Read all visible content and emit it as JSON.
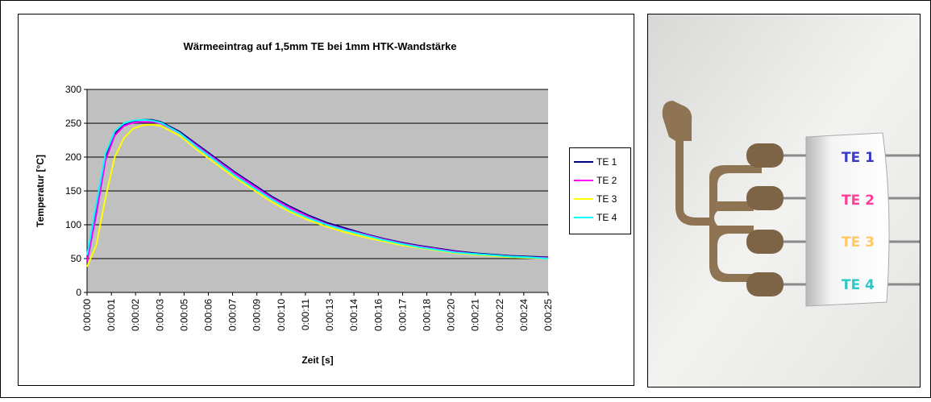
{
  "chart_data": {
    "type": "line",
    "title": "Wärmeeintrag auf 1,5mm TE bei 1mm HTK-Wandstärke",
    "x_label": "Zeit [s]",
    "y_label": "Temperatur [°C]",
    "x": [
      0,
      0.5,
      1,
      1.5,
      2,
      2.5,
      3,
      3.5,
      4,
      5,
      6,
      7,
      8,
      9,
      10,
      11,
      12,
      13,
      14,
      15,
      16,
      17,
      18,
      19,
      20,
      21,
      22,
      23,
      24,
      25
    ],
    "series": [
      {
        "name": "TE 1",
        "color": "#000080",
        "values": [
          45,
          120,
          200,
          235,
          248,
          253,
          255,
          255,
          252,
          238,
          218,
          198,
          178,
          160,
          142,
          127,
          114,
          103,
          95,
          87,
          80,
          74,
          69,
          65,
          61,
          58,
          56,
          54,
          53,
          52
        ]
      },
      {
        "name": "TE 2",
        "color": "#ff00ff",
        "values": [
          45,
          115,
          195,
          232,
          246,
          251,
          252,
          252,
          250,
          236,
          216,
          196,
          176,
          158,
          140,
          125,
          112,
          101,
          93,
          86,
          79,
          73,
          68,
          64,
          60,
          57,
          55,
          53,
          52,
          51
        ]
      },
      {
        "name": "TE 3",
        "color": "#ffff00",
        "values": [
          38,
          70,
          140,
          200,
          228,
          242,
          247,
          248,
          246,
          232,
          210,
          190,
          170,
          152,
          134,
          119,
          107,
          97,
          89,
          82,
          76,
          70,
          66,
          62,
          58,
          56,
          54,
          52,
          51,
          50
        ]
      },
      {
        "name": "TE 4",
        "color": "#00ffff",
        "values": [
          55,
          130,
          205,
          238,
          250,
          254,
          255,
          254,
          251,
          236,
          214,
          194,
          173,
          155,
          138,
          122,
          110,
          100,
          92,
          85,
          78,
          72,
          67,
          63,
          59,
          57,
          55,
          53,
          52,
          50
        ]
      }
    ],
    "xlim": [
      0,
      25
    ],
    "xticks": [
      {
        "value": 0,
        "label": "0:00:00"
      },
      {
        "value": 1.32,
        "label": "0:00:01"
      },
      {
        "value": 2.63,
        "label": "0:00:02"
      },
      {
        "value": 3.95,
        "label": "0:00:03"
      },
      {
        "value": 5.26,
        "label": "0:00:05"
      },
      {
        "value": 6.58,
        "label": "0:00:06"
      },
      {
        "value": 7.89,
        "label": "0:00:07"
      },
      {
        "value": 9.21,
        "label": "0:00:09"
      },
      {
        "value": 10.53,
        "label": "0:00:10"
      },
      {
        "value": 11.84,
        "label": "0:00:11"
      },
      {
        "value": 13.16,
        "label": "0:00:13"
      },
      {
        "value": 14.47,
        "label": "0:00:14"
      },
      {
        "value": 15.79,
        "label": "0:00:16"
      },
      {
        "value": 17.11,
        "label": "0:00:17"
      },
      {
        "value": 18.42,
        "label": "0:00:18"
      },
      {
        "value": 19.74,
        "label": "0:00:20"
      },
      {
        "value": 21.05,
        "label": "0:00:21"
      },
      {
        "value": 22.37,
        "label": "0:00:22"
      },
      {
        "value": 23.68,
        "label": "0:00:24"
      },
      {
        "value": 25,
        "label": "0:00:25"
      }
    ],
    "ylim": [
      0,
      300
    ],
    "yticks": [
      0,
      50,
      100,
      150,
      200,
      250,
      300
    ],
    "grid": true,
    "legend": "right"
  },
  "photo": {
    "labels": [
      "TE 1",
      "TE 2",
      "TE 3",
      "TE 4"
    ]
  }
}
